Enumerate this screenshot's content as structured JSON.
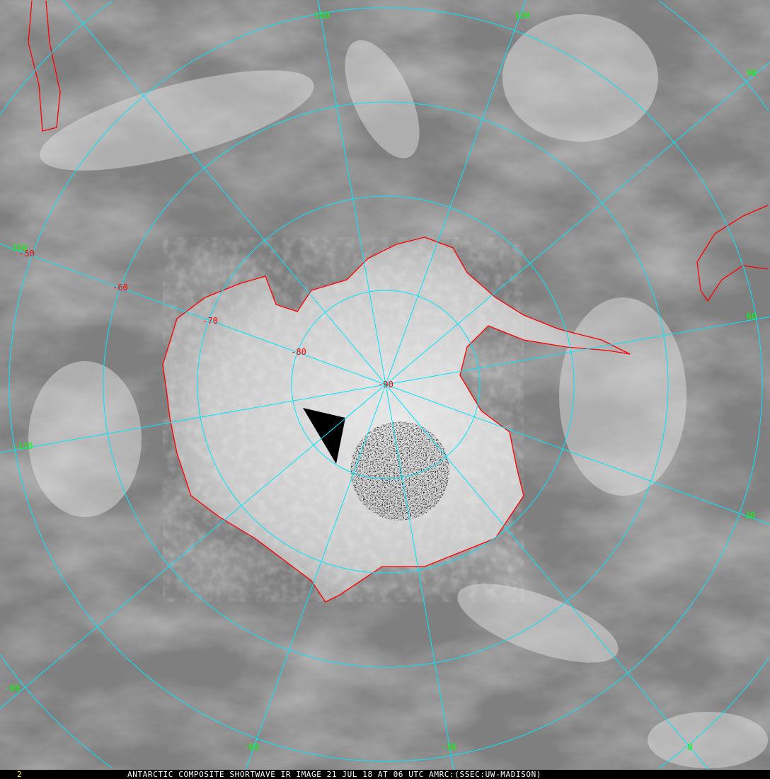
{
  "caption": "ANTARCTIC COMPOSITE SHORTWAVE IR IMAGE 21 JUL 18 AT 06 UTC AMRC:(SSEC:UW-MADISON)",
  "frame_number": "2",
  "colors": {
    "grid": "#00e5ff",
    "coastline": "#ff0000",
    "longitude_labels": "#00ff00",
    "latitude_labels": "#ff0000",
    "frame_number": "#ffff30"
  },
  "latitude_labels": [
    "-50",
    "-60",
    "-70",
    "-80",
    "-90"
  ],
  "longitude_labels": [
    "150",
    "120",
    "90",
    "60",
    "30",
    "0",
    "-30",
    "-60",
    "-90",
    "-120",
    "-150"
  ],
  "map": {
    "projection": "south polar",
    "latitudes": [
      -80,
      -70,
      -60,
      -50,
      -40
    ],
    "longitudes": [
      180,
      150,
      120,
      90,
      60,
      30,
      0,
      -30,
      -60,
      -90,
      -120,
      -150
    ]
  }
}
